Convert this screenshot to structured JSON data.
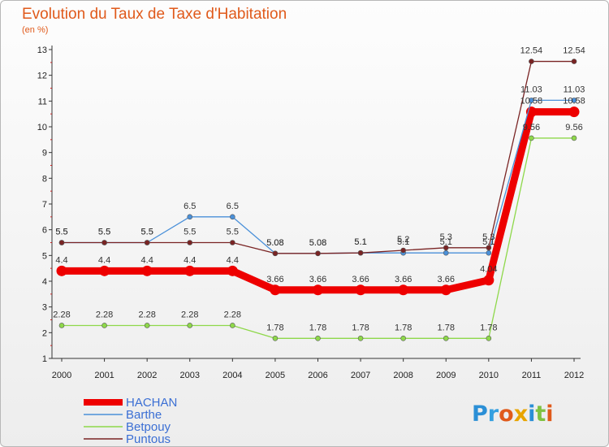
{
  "chart_data": {
    "type": "line",
    "title": "Evolution du Taux de Taxe d'Habitation",
    "subtitle": "(en %)",
    "x": [
      "2000",
      "2001",
      "2002",
      "2003",
      "2004",
      "2005",
      "2006",
      "2007",
      "2008",
      "2009",
      "2010",
      "2011",
      "2012"
    ],
    "ylim": [
      1,
      13
    ],
    "yticks": [
      1,
      2,
      3,
      4,
      5,
      6,
      7,
      8,
      9,
      10,
      11,
      12,
      13
    ],
    "grid": false,
    "legend_position": "bottom-left",
    "series": [
      {
        "name": "HACHAN",
        "color": "#ee0000",
        "values": [
          4.4,
          4.4,
          4.4,
          4.4,
          4.4,
          3.66,
          3.66,
          3.66,
          3.66,
          3.66,
          4.04,
          10.58,
          10.58
        ],
        "labels": [
          "4.4",
          "4.4",
          "4.4",
          "4.4",
          "4.4",
          "3.66",
          "3.66",
          "3.66",
          "3.66",
          "3.66",
          "4.04",
          "10.58",
          "10.58"
        ]
      },
      {
        "name": "Barthe",
        "color": "#4a90d9",
        "values": [
          5.5,
          5.5,
          5.5,
          6.5,
          6.5,
          5.08,
          5.08,
          5.1,
          5.1,
          5.1,
          5.1,
          11.03,
          11.03
        ],
        "labels": [
          "5.5",
          "5.5",
          "5.5",
          "6.5",
          "6.5",
          "5.08",
          "5.08",
          "5.1",
          "5.1",
          "5.1",
          "5.1",
          "11.03",
          "11.03"
        ]
      },
      {
        "name": "Betpouy",
        "color": "#8ed84a",
        "values": [
          2.28,
          2.28,
          2.28,
          2.28,
          2.28,
          1.78,
          1.78,
          1.78,
          1.78,
          1.78,
          1.78,
          9.56,
          9.56
        ],
        "labels": [
          "2.28",
          "2.28",
          "2.28",
          "2.28",
          "2.28",
          "1.78",
          "1.78",
          "1.78",
          "1.78",
          "1.78",
          "1.78",
          "9.56",
          "9.56"
        ]
      },
      {
        "name": "Puntous",
        "color": "#7a2424",
        "values": [
          5.5,
          5.5,
          5.5,
          5.5,
          5.5,
          5.08,
          5.08,
          5.1,
          5.2,
          5.3,
          5.3,
          12.54,
          12.54
        ],
        "labels": [
          "5.5",
          "5.5",
          "5.5",
          "5.5",
          "5.5",
          "5.08",
          "5.08",
          "5.1",
          "5.2",
          "5.3",
          "5.3",
          "12.54",
          "12.54"
        ]
      }
    ]
  },
  "logo": {
    "text": "Proxiti"
  }
}
